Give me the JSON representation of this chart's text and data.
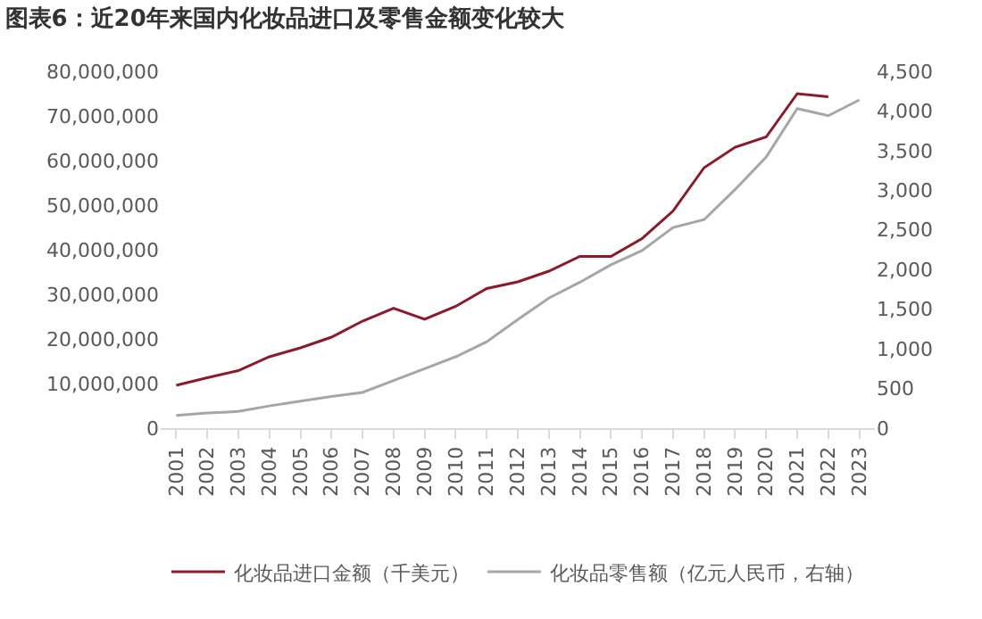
{
  "chart_data": {
    "type": "line",
    "title": "图表6：近20年来国内化妆品进口及零售金额变化较大",
    "categories": [
      "2001",
      "2002",
      "2003",
      "2004",
      "2005",
      "2006",
      "2007",
      "2008",
      "2009",
      "2010",
      "2011",
      "2012",
      "2013",
      "2014",
      "2015",
      "2016",
      "2017",
      "2018",
      "2019",
      "2020",
      "2021",
      "2022",
      "2023"
    ],
    "series": [
      {
        "name": "化妆品进口金额（千美元）",
        "color": "#8b1a2b",
        "values": [
          9600000,
          11300000,
          12900000,
          16000000,
          18000000,
          20400000,
          24000000,
          26900000,
          24400000,
          27300000,
          31300000,
          32800000,
          35200000,
          38500000,
          38500000,
          42500000,
          48700000,
          58400000,
          63000000,
          65300000,
          75000000,
          74300000,
          null
        ]
      },
      {
        "name": "化妆品零售额（亿元人民币，右轴）",
        "color": "#a6a6a6",
        "axis": "y2",
        "values": [
          160,
          190,
          210,
          280,
          340,
          400,
          450,
          600,
          750,
          900,
          1090,
          1370,
          1640,
          1840,
          2060,
          2240,
          2530,
          2630,
          3010,
          3420,
          4030,
          3940,
          4140
        ]
      }
    ],
    "ylim": [
      0,
      80000000
    ],
    "yticks": [
      0,
      {
        "value": 10000000,
        "label": "10,000,000"
      },
      {
        "value": 20000000,
        "label": "20,000,000"
      },
      {
        "value": 30000000,
        "label": "30,000,000"
      },
      {
        "value": 40000000,
        "label": "40,000,000"
      },
      {
        "value": 50000000,
        "label": "50,000,000"
      },
      {
        "value": 60000000,
        "label": "60,000,000"
      },
      {
        "value": 70000000,
        "label": "70,000,000"
      },
      {
        "value": 80000000,
        "label": "80,000,000"
      }
    ],
    "y2lim": [
      0,
      4500
    ],
    "y2ticks": [
      0,
      500,
      {
        "value": 1000,
        "label": "1,000"
      },
      {
        "value": 1500,
        "label": "1,500"
      },
      {
        "value": 2000,
        "label": "2,000"
      },
      {
        "value": 2500,
        "label": "2,500"
      },
      {
        "value": 3000,
        "label": "3,000"
      },
      {
        "value": 3500,
        "label": "3,500"
      },
      {
        "value": 4000,
        "label": "4,000"
      },
      {
        "value": 4500,
        "label": "4,500"
      }
    ],
    "legend": "bottom",
    "marker": "none",
    "line_style": "solid"
  }
}
